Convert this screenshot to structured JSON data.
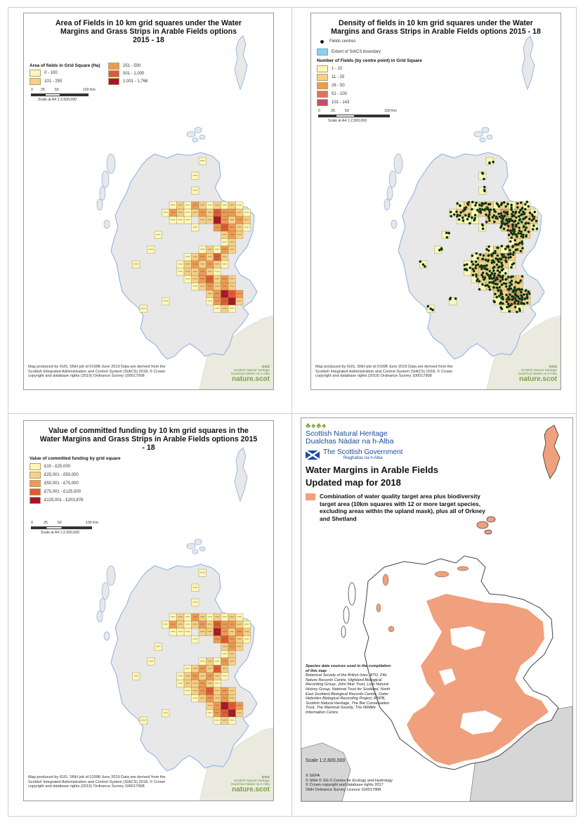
{
  "colors": {
    "land": "#e8e8e8",
    "coast": "#8fb4e0",
    "england": "#eaeadf",
    "q1": "#fdf7b8",
    "q2": "#f6d088",
    "q3": "#ee9a55",
    "q4": "#de5a35",
    "q5": "#a8152a",
    "salmon": "#f0a07c",
    "ng_green": "#7aa33c",
    "gov_blue": "#1c4a9c"
  },
  "panels": {
    "area": {
      "title": "Area of Fields in 10 km grid squares under the Water Margins and Grass Strips in Arable Fields options 2015 - 18",
      "legend_title": "Area of fields in Grid Square (Ha)",
      "legend": [
        "0 - 100",
        "101 - 250",
        "251 - 500",
        "501 - 1,000",
        "1,001 - 1,768"
      ],
      "scale_ticks": [
        "0",
        "25",
        "50",
        "100 Km"
      ],
      "scale_text": "Scale at A4 1:2,500,000",
      "credit": "Map produced by IGIS, SNH job id 01998 June 2019 Data are derived from the Scottish Integrated Administration and Control System (SIACS) 2018, © Crown copyright and database rights (2019) Ordnance Survey 100017908"
    },
    "density": {
      "title": "Density of fields in 10 km grid squares under the Water Margins and Grass Strips in Arable Fields options 2015 - 18",
      "centres": "Fields centres",
      "boundary": "Extent of SIACS boundary",
      "legend_title": "Number of Fields (by centre point) in Grid Square",
      "legend": [
        "1 - 10",
        "11 - 25",
        "26 - 50",
        "51 - 100",
        "101 - 143"
      ],
      "scale_ticks": [
        "0",
        "25",
        "50",
        "100 Km"
      ],
      "scale_text": "Scale at A4 1:2,500,000",
      "credit": "Map produced by IGIS, SNH job id 01998 June 2019 Data are derived from the Scottish Integrated Administration and Control System (SIACS) 2018, © Crown copyright and database rights (2019) Ordnance Survey 100017908"
    },
    "funding": {
      "title": "Value of committed funding by 10 km grid squares in the Water Margins and Grass Strips in Arable Fields options 2015 - 18",
      "legend_title": "Value of committed funding by grid square",
      "legend": [
        "£15 - £25,000",
        "£25,001 - £50,000",
        "£50,001 - £75,000",
        "£75,001 - £125,000",
        "£125,001 - £203,878"
      ],
      "scale_ticks": [
        "0",
        "25",
        "50",
        "100 Km"
      ],
      "scale_text": "Scale at A4 1:2,500,000",
      "credit": "Map produced by IGIS, SNH job id 01998 June 2019 Data are derived from the Scottish Integrated Administration and Control System (SIACS) 2018, © Crown copyright and database rights (2019) Ordnance Survey 100017908"
    },
    "target": {
      "org1": "Scottish Natural Heritage",
      "org1_gaelic": "Dualchas Nàdair na h-Alba",
      "org2": "The Scottish Government",
      "org2_gaelic": "Riaghaltas na h-Alba",
      "title1": "Water Margins in Arable Fields",
      "title2": "Updated map for 2018",
      "legend_text": "Combination of water quality target area plus biodiversity target area (10km squares with 12 or more target species, excluding areas within the upland mask), plus all of Orkney and Shetland",
      "sources_title": "Species data sources used in the compilation of this map",
      "sources": "Botanical Society of the British Isles, BTO, Fife Nature Records Centre, Highland Biological Recording Group, John Muir Trust, Lorn Natural History Group, National Trust for Scotland, North East Scotland Biological Records Centre, Outer Hebrides Biological Recording Project, RSPB, Scottish Natural Heritage, The Bat Conservation Trust, The Mammal Society, The Wildlife Information Centre",
      "scale": "Scale  1:2,600,000",
      "copyright": [
        "© SEPA",
        "© SNH © SG © Centre for Ecology and Hydrology",
        "© Crown copyright and database rights 2017",
        "SNH Ordnance Survey Licence 100017908"
      ]
    }
  },
  "logo": {
    "ng_en": "Scottish Natural Heritage",
    "ng_gd": "Dualchas Nàdair na h-Alba",
    "site": "nature.scot"
  }
}
